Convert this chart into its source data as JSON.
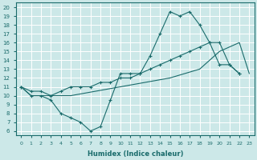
{
  "xlabel": "Humidex (Indice chaleur)",
  "bg_color": "#cce8e8",
  "grid_color": "#ffffff",
  "line_color": "#1a6b6b",
  "xlim": [
    -0.5,
    23.5
  ],
  "ylim": [
    5.5,
    20.5
  ],
  "xticks": [
    0,
    1,
    2,
    3,
    4,
    5,
    6,
    7,
    8,
    9,
    10,
    11,
    12,
    13,
    14,
    15,
    16,
    17,
    18,
    19,
    20,
    21,
    22,
    23
  ],
  "yticks": [
    6,
    7,
    8,
    9,
    10,
    11,
    12,
    13,
    14,
    15,
    16,
    17,
    18,
    19,
    20
  ],
  "curve_upper_x": [
    0,
    1,
    2,
    3,
    4,
    5,
    6,
    7,
    8,
    9,
    10,
    11,
    12,
    13,
    14,
    15,
    16,
    17,
    18,
    19,
    20,
    21,
    22
  ],
  "curve_upper_y": [
    11,
    10,
    10,
    9.5,
    8,
    7.5,
    7,
    6,
    6.5,
    9.5,
    12.5,
    12.5,
    12.5,
    14.5,
    17,
    19.5,
    19,
    19.5,
    18,
    16,
    13.5,
    13.5,
    12.5
  ],
  "curve_mid_x": [
    0,
    1,
    2,
    3,
    4,
    5,
    6,
    7,
    8,
    9,
    10,
    11,
    12,
    13,
    14,
    15,
    16,
    17,
    18,
    19,
    20,
    21,
    22
  ],
  "curve_mid_y": [
    11,
    10.5,
    10.5,
    10,
    10.5,
    11,
    11,
    11,
    11.5,
    11.5,
    12,
    12,
    12.5,
    13,
    13.5,
    14,
    14.5,
    15,
    15.5,
    16,
    16,
    13.5,
    12.5
  ],
  "curve_low_x": [
    0,
    1,
    2,
    3,
    4,
    5,
    10,
    15,
    18,
    19,
    20,
    21,
    22,
    23
  ],
  "curve_low_y": [
    11,
    10,
    10,
    10,
    10,
    10,
    11,
    12,
    13,
    14,
    15,
    15.5,
    16,
    12.5
  ]
}
